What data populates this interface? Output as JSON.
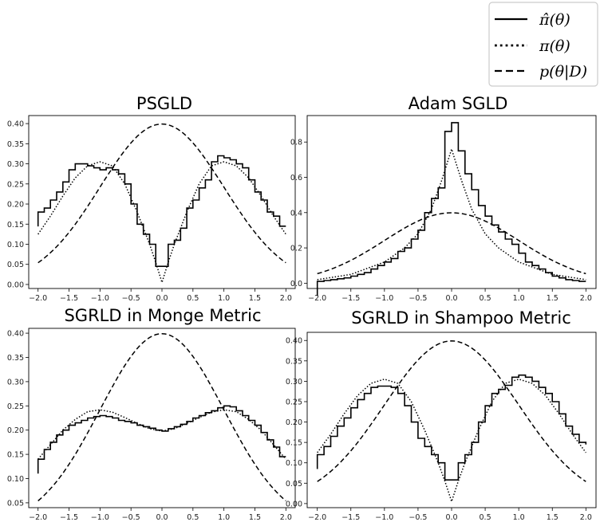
{
  "legend": {
    "placement": "top-right",
    "entries": [
      {
        "label": "π̂(θ)",
        "style": "solid"
      },
      {
        "label": "π(θ)",
        "style": "dotted"
      },
      {
        "label": "p(θ|D)",
        "style": "dashed"
      }
    ]
  },
  "chart_data": [
    {
      "type": "line",
      "title": "PSGLD",
      "xlim": [
        -2.0,
        2.0
      ],
      "ylim": [
        -0.01,
        0.42
      ],
      "xticks": [
        -2.0,
        -1.5,
        -1.0,
        -0.5,
        0.0,
        0.5,
        1.0,
        1.5,
        2.0
      ],
      "xtick_labels": [
        "−2.0",
        "−1.5",
        "−1.0",
        "−0.5",
        "0.0",
        "0.5",
        "1.0",
        "1.5",
        "2.0"
      ],
      "yticks": [
        0.0,
        0.05,
        0.1,
        0.15,
        0.2,
        0.25,
        0.3,
        0.35,
        0.4
      ],
      "ytick_labels": [
        "0.00",
        "0.05",
        "0.10",
        "0.15",
        "0.20",
        "0.25",
        "0.30",
        "0.35",
        "0.40"
      ],
      "series": [
        {
          "name": "π̂(θ)",
          "style": "step",
          "x": [
            -2.0,
            -1.9,
            -1.8,
            -1.7,
            -1.6,
            -1.5,
            -1.4,
            -1.3,
            -1.2,
            -1.1,
            -1.0,
            -0.9,
            -0.8,
            -0.7,
            -0.6,
            -0.5,
            -0.4,
            -0.3,
            -0.2,
            -0.1,
            0.0,
            0.1,
            0.2,
            0.3,
            0.4,
            0.5,
            0.6,
            0.7,
            0.8,
            0.9,
            1.0,
            1.1,
            1.2,
            1.3,
            1.4,
            1.5,
            1.6,
            1.7,
            1.8,
            1.9,
            2.0
          ],
          "y": [
            0.18,
            0.19,
            0.21,
            0.23,
            0.255,
            0.285,
            0.3,
            0.3,
            0.295,
            0.29,
            0.285,
            0.29,
            0.285,
            0.275,
            0.25,
            0.2,
            0.15,
            0.125,
            0.1,
            0.045,
            0.045,
            0.1,
            0.11,
            0.14,
            0.19,
            0.21,
            0.24,
            0.26,
            0.305,
            0.32,
            0.315,
            0.31,
            0.3,
            0.29,
            0.26,
            0.23,
            0.21,
            0.18,
            0.17,
            0.145,
            0.145
          ]
        },
        {
          "name": "π(θ)",
          "style": "dotted",
          "x": [
            -2.0,
            -1.8,
            -1.6,
            -1.4,
            -1.2,
            -1.0,
            -0.8,
            -0.6,
            -0.4,
            -0.3,
            -0.2,
            -0.1,
            0.0,
            0.1,
            0.2,
            0.3,
            0.4,
            0.6,
            0.8,
            1.0,
            1.2,
            1.4,
            1.6,
            1.8,
            2.0
          ],
          "y": [
            0.125,
            0.17,
            0.22,
            0.265,
            0.295,
            0.305,
            0.295,
            0.25,
            0.18,
            0.14,
            0.1,
            0.055,
            0.005,
            0.055,
            0.1,
            0.14,
            0.18,
            0.25,
            0.295,
            0.305,
            0.295,
            0.265,
            0.22,
            0.17,
            0.125
          ]
        },
        {
          "name": "p(θ|D)",
          "style": "dashed",
          "fn": "normal_pdf",
          "mu": 0,
          "sigma": 1
        }
      ]
    },
    {
      "type": "line",
      "title": "Adam SGLD",
      "xlim": [
        -2.0,
        2.0
      ],
      "ylim": [
        -0.03,
        0.95
      ],
      "xticks": [
        -2.0,
        -1.5,
        -1.0,
        -0.5,
        0.0,
        0.5,
        1.0,
        1.5,
        2.0
      ],
      "xtick_labels": [
        "−2.0",
        "−1.5",
        "−1.0",
        "−0.5",
        "0.0",
        "0.5",
        "1.0",
        "1.5",
        "2.0"
      ],
      "yticks": [
        0.0,
        0.2,
        0.4,
        0.6,
        0.8
      ],
      "ytick_labels": [
        "0.0",
        "0.2",
        "0.4",
        "0.6",
        "0.8"
      ],
      "series": [
        {
          "name": "π̂(θ)",
          "style": "step",
          "x": [
            -2.0,
            -1.9,
            -1.8,
            -1.7,
            -1.6,
            -1.5,
            -1.4,
            -1.3,
            -1.2,
            -1.1,
            -1.0,
            -0.9,
            -0.8,
            -0.7,
            -0.6,
            -0.5,
            -0.4,
            -0.3,
            -0.2,
            -0.1,
            0.0,
            0.1,
            0.2,
            0.3,
            0.4,
            0.5,
            0.6,
            0.7,
            0.8,
            0.9,
            1.0,
            1.1,
            1.2,
            1.3,
            1.4,
            1.5,
            1.6,
            1.7,
            1.8,
            1.9,
            2.0
          ],
          "y": [
            0.01,
            0.015,
            0.02,
            0.025,
            0.03,
            0.04,
            0.05,
            0.06,
            0.08,
            0.1,
            0.12,
            0.14,
            0.18,
            0.2,
            0.25,
            0.3,
            0.4,
            0.48,
            0.54,
            0.86,
            0.91,
            0.75,
            0.62,
            0.53,
            0.44,
            0.38,
            0.33,
            0.29,
            0.25,
            0.22,
            0.17,
            0.12,
            0.1,
            0.08,
            0.06,
            0.04,
            0.03,
            0.02,
            0.015,
            0.01,
            0.01
          ]
        },
        {
          "name": "π(θ)",
          "style": "dotted",
          "x": [
            -2.0,
            -1.5,
            -1.0,
            -0.7,
            -0.5,
            -0.3,
            -0.15,
            0.0,
            0.15,
            0.3,
            0.5,
            0.7,
            1.0,
            1.5,
            2.0
          ],
          "y": [
            0.02,
            0.05,
            0.12,
            0.2,
            0.28,
            0.42,
            0.58,
            0.76,
            0.58,
            0.42,
            0.28,
            0.2,
            0.12,
            0.05,
            0.02
          ]
        },
        {
          "name": "p(θ|D)",
          "style": "dashed",
          "fn": "normal_pdf",
          "mu": 0,
          "sigma": 1
        }
      ]
    },
    {
      "type": "line",
      "title": "SGRLD in Monge Metric",
      "xlim": [
        -2.0,
        2.0
      ],
      "ylim": [
        0.04,
        0.41
      ],
      "xticks": [
        -2.0,
        -1.5,
        -1.0,
        -0.5,
        0.0,
        0.5,
        1.0,
        1.5,
        2.0
      ],
      "xtick_labels": [
        "−2.0",
        "−1.5",
        "−1.0",
        "−0.5",
        "0.0",
        "0.5",
        "1.0",
        "1.5",
        "2.0"
      ],
      "yticks": [
        0.05,
        0.1,
        0.15,
        0.2,
        0.25,
        0.3,
        0.35,
        0.4
      ],
      "ytick_labels": [
        "0.05",
        "0.10",
        "0.15",
        "0.20",
        "0.25",
        "0.30",
        "0.35",
        "0.40"
      ],
      "series": [
        {
          "name": "π̂(θ)",
          "style": "step",
          "x": [
            -2.0,
            -1.9,
            -1.8,
            -1.7,
            -1.6,
            -1.5,
            -1.4,
            -1.3,
            -1.2,
            -1.1,
            -1.0,
            -0.9,
            -0.8,
            -0.7,
            -0.6,
            -0.5,
            -0.4,
            -0.3,
            -0.2,
            -0.1,
            0.0,
            0.1,
            0.2,
            0.3,
            0.4,
            0.5,
            0.6,
            0.7,
            0.8,
            0.9,
            1.0,
            1.1,
            1.2,
            1.3,
            1.4,
            1.5,
            1.6,
            1.7,
            1.8,
            1.9,
            2.0
          ],
          "y": [
            0.14,
            0.16,
            0.175,
            0.19,
            0.2,
            0.21,
            0.215,
            0.22,
            0.225,
            0.228,
            0.23,
            0.228,
            0.225,
            0.22,
            0.218,
            0.215,
            0.21,
            0.207,
            0.204,
            0.2,
            0.198,
            0.203,
            0.207,
            0.212,
            0.218,
            0.225,
            0.23,
            0.236,
            0.24,
            0.246,
            0.25,
            0.248,
            0.24,
            0.23,
            0.22,
            0.21,
            0.195,
            0.18,
            0.165,
            0.145,
            0.145
          ]
        },
        {
          "name": "π(θ)",
          "style": "dotted",
          "x": [
            -2.0,
            -1.8,
            -1.6,
            -1.4,
            -1.2,
            -1.0,
            -0.8,
            -0.6,
            -0.4,
            -0.2,
            0.0,
            0.2,
            0.4,
            0.6,
            0.8,
            1.0,
            1.2,
            1.4,
            1.6,
            1.8,
            2.0
          ],
          "y": [
            0.14,
            0.17,
            0.2,
            0.222,
            0.238,
            0.242,
            0.237,
            0.226,
            0.214,
            0.203,
            0.198,
            0.203,
            0.214,
            0.226,
            0.237,
            0.242,
            0.238,
            0.222,
            0.2,
            0.17,
            0.14
          ]
        },
        {
          "name": "p(θ|D)",
          "style": "dashed",
          "fn": "normal_pdf",
          "mu": 0,
          "sigma": 1
        }
      ]
    },
    {
      "type": "line",
      "title": "SGRLD in Shampoo Metric",
      "xlim": [
        -2.0,
        2.0
      ],
      "ylim": [
        -0.01,
        0.42
      ],
      "xticks": [
        -2.0,
        -1.5,
        -1.0,
        -0.5,
        0.0,
        0.5,
        1.0,
        1.5,
        2.0
      ],
      "xtick_labels": [
        "−2.0",
        "−1.5",
        "−1.0",
        "−0.5",
        "0.0",
        "0.5",
        "1.0",
        "1.5",
        "2.0"
      ],
      "yticks": [
        0.0,
        0.05,
        0.1,
        0.15,
        0.2,
        0.25,
        0.3,
        0.35,
        0.4
      ],
      "ytick_labels": [
        "0.00",
        "0.05",
        "0.10",
        "0.15",
        "0.20",
        "0.25",
        "0.30",
        "0.35",
        "0.40"
      ],
      "series": [
        {
          "name": "π̂(θ)",
          "style": "step",
          "x": [
            -2.0,
            -1.9,
            -1.8,
            -1.7,
            -1.6,
            -1.5,
            -1.4,
            -1.3,
            -1.2,
            -1.1,
            -1.0,
            -0.9,
            -0.8,
            -0.7,
            -0.6,
            -0.5,
            -0.4,
            -0.3,
            -0.2,
            -0.1,
            0.0,
            0.1,
            0.2,
            0.3,
            0.4,
            0.5,
            0.6,
            0.7,
            0.8,
            0.9,
            1.0,
            1.1,
            1.2,
            1.3,
            1.4,
            1.5,
            1.6,
            1.7,
            1.8,
            1.9,
            2.0
          ],
          "y": [
            0.12,
            0.14,
            0.165,
            0.19,
            0.21,
            0.235,
            0.255,
            0.27,
            0.285,
            0.288,
            0.288,
            0.285,
            0.27,
            0.24,
            0.2,
            0.16,
            0.14,
            0.12,
            0.1,
            0.058,
            0.058,
            0.1,
            0.12,
            0.15,
            0.2,
            0.24,
            0.27,
            0.28,
            0.29,
            0.31,
            0.315,
            0.31,
            0.3,
            0.285,
            0.27,
            0.25,
            0.22,
            0.19,
            0.17,
            0.15,
            0.145
          ]
        },
        {
          "name": "π(θ)",
          "style": "dotted",
          "x": [
            -2.0,
            -1.8,
            -1.6,
            -1.4,
            -1.2,
            -1.0,
            -0.8,
            -0.6,
            -0.4,
            -0.3,
            -0.2,
            -0.1,
            0.0,
            0.1,
            0.2,
            0.3,
            0.4,
            0.6,
            0.8,
            1.0,
            1.2,
            1.4,
            1.6,
            1.8,
            2.0
          ],
          "y": [
            0.125,
            0.17,
            0.22,
            0.265,
            0.295,
            0.305,
            0.295,
            0.25,
            0.18,
            0.14,
            0.1,
            0.055,
            0.005,
            0.055,
            0.1,
            0.14,
            0.18,
            0.25,
            0.295,
            0.305,
            0.295,
            0.265,
            0.22,
            0.17,
            0.125
          ]
        },
        {
          "name": "p(θ|D)",
          "style": "dashed",
          "fn": "normal_pdf",
          "mu": 0,
          "sigma": 1
        }
      ]
    }
  ]
}
